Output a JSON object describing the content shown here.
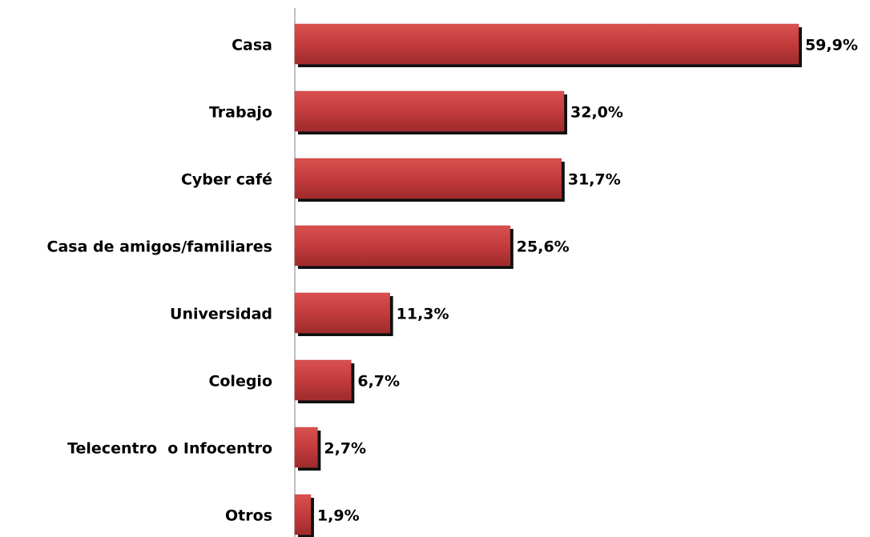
{
  "chart_data": {
    "type": "hbar",
    "categories": [
      "Casa",
      "Trabajo",
      "Cyber café",
      "Casa de amigos/familiares",
      "Universidad",
      "Colegio",
      "Telecentro  o Infocentro",
      "Otros"
    ],
    "values": [
      59.9,
      32.0,
      31.7,
      25.6,
      11.3,
      6.7,
      2.7,
      1.9
    ],
    "value_labels": [
      "59,9%",
      "32,0%",
      "31,7%",
      "25,6%",
      "11,3%",
      "6,7%",
      "2,7%",
      "1,9%"
    ],
    "color": "#c0393b",
    "xlim": [
      0,
      60
    ]
  }
}
